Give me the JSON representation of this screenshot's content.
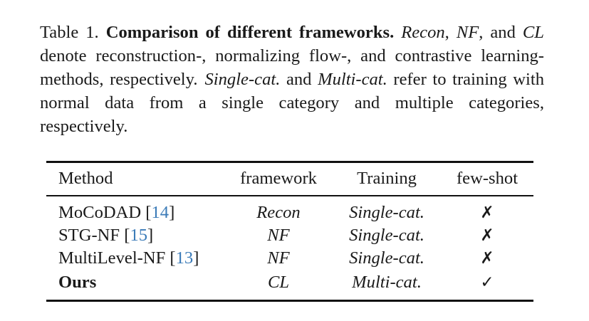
{
  "caption": {
    "label": "Table 1.",
    "title": "Comparison of different frameworks.",
    "recon": "Recon",
    "sep1": ", ",
    "nf": "NF",
    "sep2": ", and ",
    "cl": "CL",
    "text1": " denote reconstruction-, normalizing flow-, and contrastive learning-methods, respectively.",
    "single": "Single-cat.",
    "and": " and ",
    "multi": "Multi-cat.",
    "text2": " refer to training with normal data from a single category and multiple categories, respectively."
  },
  "table": {
    "headers": {
      "method": "Method",
      "framework": "framework",
      "training": "Training",
      "few_shot": "few-shot"
    },
    "rows": [
      {
        "method": "MoCoDAD",
        "cite": "14",
        "framework": "Recon",
        "training": "Single-cat.",
        "few_shot": "✗"
      },
      {
        "method": "STG-NF",
        "cite": "15",
        "framework": "NF",
        "training": "Single-cat.",
        "few_shot": "✗"
      },
      {
        "method": "MultiLevel-NF",
        "cite": "13",
        "framework": "NF",
        "training": "Single-cat.",
        "few_shot": "✗"
      },
      {
        "method": "Ours",
        "framework": "CL",
        "training": "Multi-cat.",
        "few_shot": "✓"
      }
    ]
  }
}
